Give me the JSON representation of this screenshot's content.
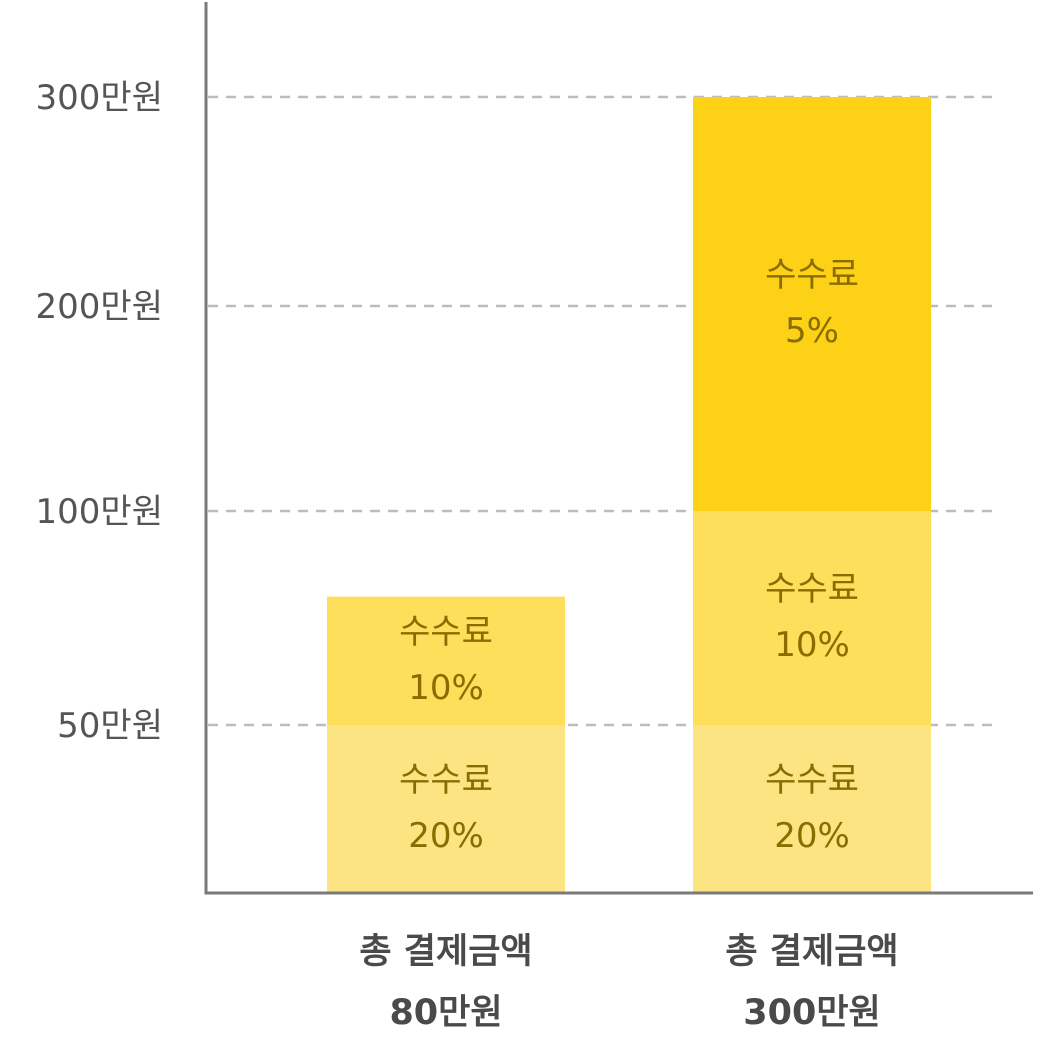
{
  "chart_data": {
    "type": "bar",
    "stacked": true,
    "y_ticks": [
      {
        "value": 50,
        "label": "50만원"
      },
      {
        "value": 100,
        "label": "100만원"
      },
      {
        "value": 200,
        "label": "200만원"
      },
      {
        "value": 300,
        "label": "300만원"
      }
    ],
    "grid": true,
    "categories": [
      {
        "label_line1": "총 결제금액",
        "label_line2": "80만원",
        "total": 80,
        "segments": [
          {
            "from": 0,
            "to": 50,
            "label_line1": "수수료",
            "label_line2": "20%",
            "color": "#FDE483"
          },
          {
            "from": 50,
            "to": 80,
            "label_line1": "수수료",
            "label_line2": "10%",
            "color": "#FDDF5B"
          }
        ]
      },
      {
        "label_line1": "총 결제금액",
        "label_line2": "300만원",
        "total": 300,
        "segments": [
          {
            "from": 0,
            "to": 50,
            "label_line1": "수수료",
            "label_line2": "20%",
            "color": "#FDE483"
          },
          {
            "from": 50,
            "to": 100,
            "label_line1": "수수료",
            "label_line2": "10%",
            "color": "#FDDF5B"
          },
          {
            "from": 100,
            "to": 300,
            "label_line1": "수수료",
            "label_line2": "5%",
            "color": "#FDD116"
          }
        ]
      }
    ]
  },
  "colors": {
    "axis": "#7a7a7a",
    "grid": "#bdbdbd",
    "tick_text": "#555555",
    "segment_text": "#8a6d00",
    "category_text": "#4a4a4a"
  }
}
